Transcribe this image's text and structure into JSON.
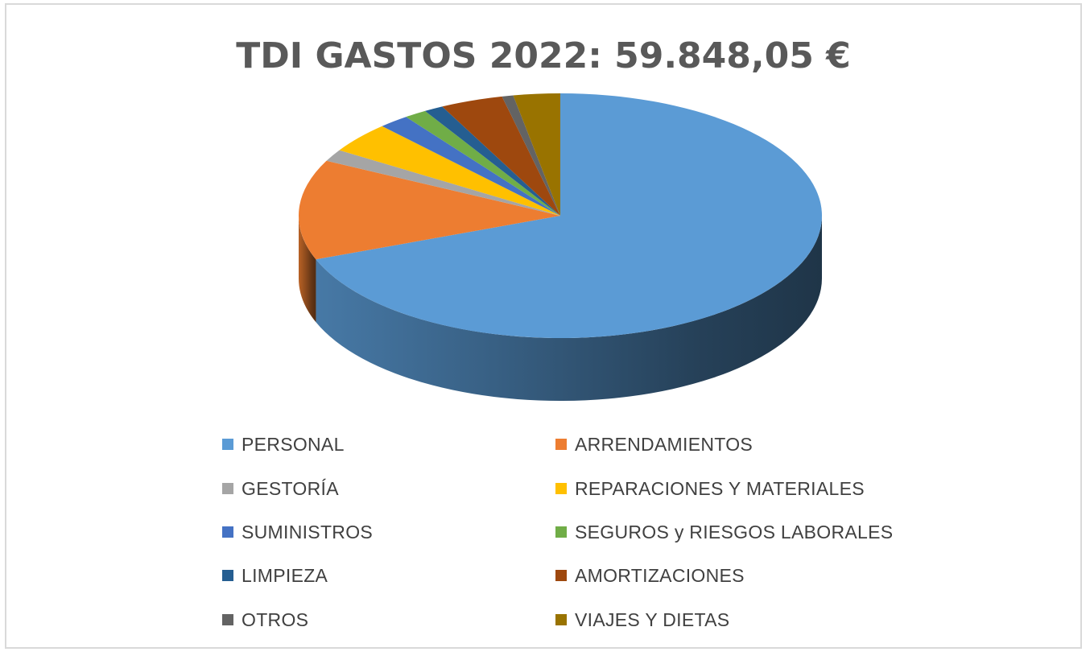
{
  "chart_data": {
    "type": "pie",
    "title": "TDI GASTOS 2022: 59.848,05 €",
    "three_d": true,
    "legend_position": "bottom",
    "categories": [
      "PERSONAL",
      "ARRENDAMIENTOS",
      "GESTORÍA",
      "REPARACIONES Y MATERIALES",
      "SUMINISTROS",
      "SEGUROS y RIESGOS LABORALES",
      "LIMPIEZA",
      "AMORTIZACIONES",
      "OTROS",
      "VIAJES Y DIETAS"
    ],
    "values": [
      69.6,
      13.3,
      1.6,
      4.1,
      1.9,
      1.4,
      1.2,
      3.9,
      0.7,
      2.9
    ],
    "colors": [
      "#5b9bd5",
      "#ed7d31",
      "#a5a5a5",
      "#ffc000",
      "#4472c4",
      "#70ad47",
      "#255e91",
      "#9e480e",
      "#636363",
      "#997300"
    ]
  }
}
